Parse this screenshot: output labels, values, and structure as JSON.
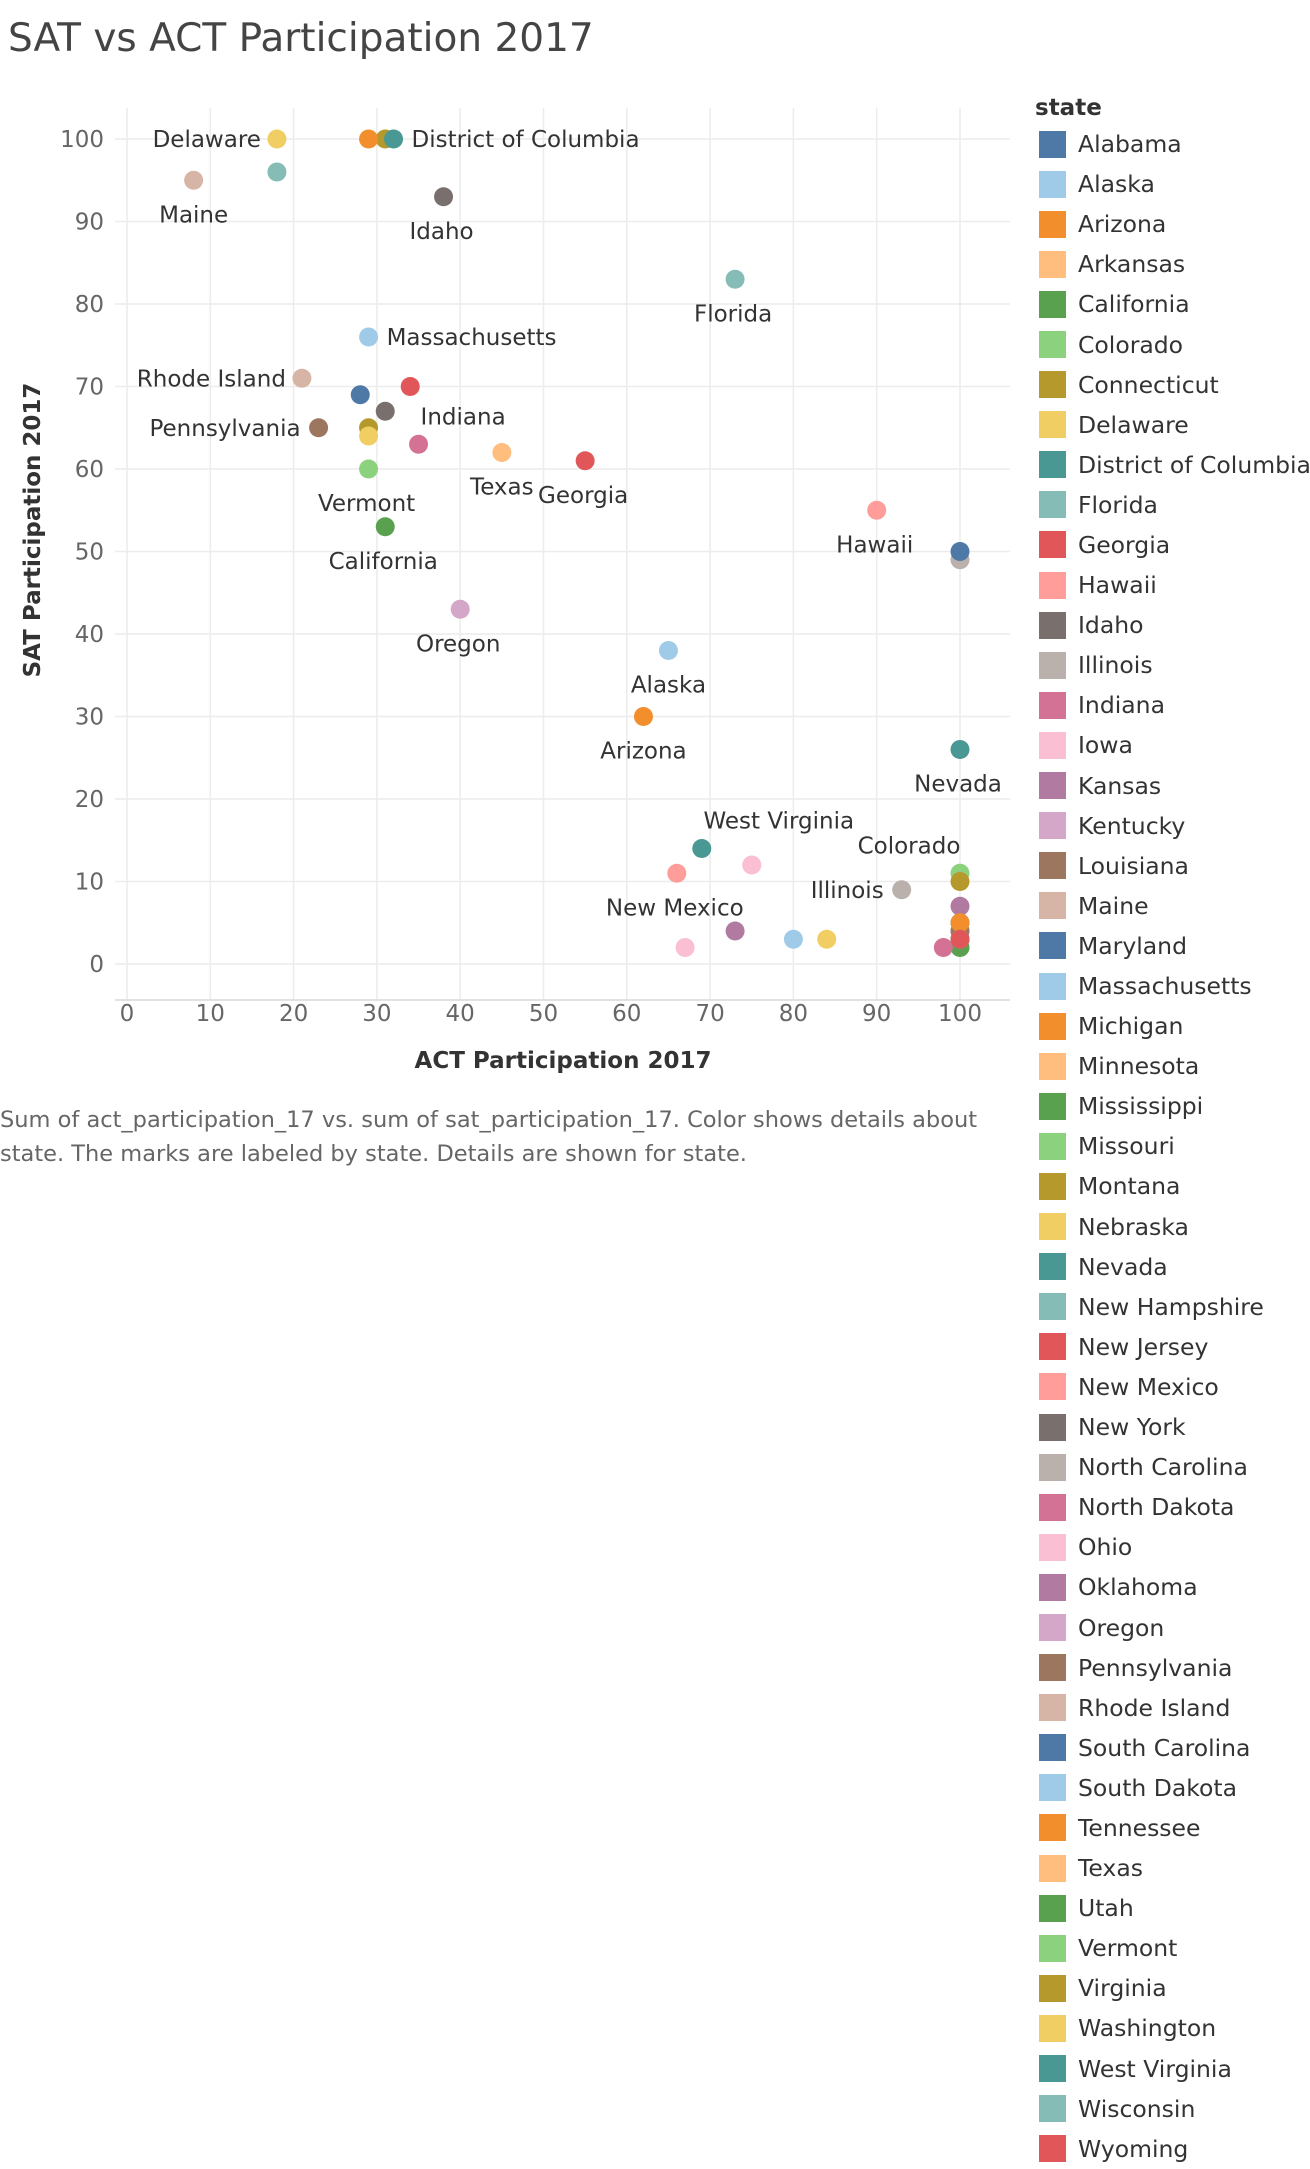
{
  "chart_data": {
    "type": "scatter",
    "title": "SAT vs ACT Participation 2017",
    "xlabel": "ACT Participation 2017",
    "ylabel": "SAT Participation 2017",
    "xlim": [
      -2,
      106
    ],
    "ylim": [
      -5,
      105
    ],
    "xticks": [
      "0",
      "10",
      "20",
      "30",
      "40",
      "50",
      "60",
      "70",
      "80",
      "90",
      "100"
    ],
    "yticks": [
      "0",
      "10",
      "20",
      "30",
      "40",
      "50",
      "60",
      "70",
      "80",
      "90",
      "100"
    ],
    "grid": true,
    "legend_title": "state",
    "legend_position": "right",
    "caption": "Sum of act_participation_17 vs. sum of sat_participation_17.  Color shows details about state.  The marks are labeled by state.  Details are shown for state.",
    "points": [
      {
        "state": "Alabama",
        "x": 100,
        "y": 5,
        "color": "#4e79a7"
      },
      {
        "state": "Alaska",
        "x": 65,
        "y": 38,
        "color": "#a0cbe8",
        "label": "Alaska"
      },
      {
        "state": "Arizona",
        "x": 62,
        "y": 30,
        "color": "#f28e2b",
        "label": "Arizona"
      },
      {
        "state": "Arkansas",
        "x": 100,
        "y": 3,
        "color": "#ffbe7d"
      },
      {
        "state": "California",
        "x": 31,
        "y": 53,
        "color": "#59a14f",
        "label": "California"
      },
      {
        "state": "Colorado",
        "x": 100,
        "y": 11,
        "color": "#8cd17d",
        "label": "Colorado"
      },
      {
        "state": "Connecticut",
        "x": 31,
        "y": 100,
        "color": "#b6992d"
      },
      {
        "state": "Delaware",
        "x": 18,
        "y": 100,
        "color": "#f1ce63",
        "label": "Delaware"
      },
      {
        "state": "District of Columbia",
        "x": 32,
        "y": 100,
        "color": "#499894",
        "label": "District of Columbia"
      },
      {
        "state": "Florida",
        "x": 73,
        "y": 83,
        "color": "#86bcb6",
        "label": "Florida"
      },
      {
        "state": "Georgia",
        "x": 55,
        "y": 61,
        "color": "#e15759",
        "label": "Georgia"
      },
      {
        "state": "Hawaii",
        "x": 90,
        "y": 55,
        "color": "#ff9d9a",
        "label": "Hawaii"
      },
      {
        "state": "Idaho",
        "x": 38,
        "y": 93,
        "color": "#79706e",
        "label": "Idaho"
      },
      {
        "state": "Illinois",
        "x": 93,
        "y": 9,
        "color": "#bab0ac",
        "label": "Illinois"
      },
      {
        "state": "Indiana",
        "x": 35,
        "y": 63,
        "color": "#d37295",
        "label": "Indiana"
      },
      {
        "state": "Iowa",
        "x": 67,
        "y": 2,
        "color": "#fabfd2"
      },
      {
        "state": "Kansas",
        "x": 73,
        "y": 4,
        "color": "#b07aa1"
      },
      {
        "state": "Kentucky",
        "x": 100,
        "y": 4,
        "color": "#d4a6c8"
      },
      {
        "state": "Louisiana",
        "x": 100,
        "y": 4,
        "color": "#9d7660"
      },
      {
        "state": "Maine",
        "x": 8,
        "y": 95,
        "color": "#d7b5a6",
        "label": "Maine"
      },
      {
        "state": "Maryland",
        "x": 28,
        "y": 69,
        "color": "#4e79a7"
      },
      {
        "state": "Massachusetts",
        "x": 29,
        "y": 76,
        "color": "#a0cbe8",
        "label": "Massachusetts"
      },
      {
        "state": "Michigan",
        "x": 29,
        "y": 100,
        "color": "#f28e2b"
      },
      {
        "state": "Minnesota",
        "x": 100,
        "y": 3,
        "color": "#ffbe7d"
      },
      {
        "state": "Mississippi",
        "x": 100,
        "y": 2,
        "color": "#59a14f"
      },
      {
        "state": "Missouri",
        "x": 100,
        "y": 3,
        "color": "#8cd17d"
      },
      {
        "state": "Montana",
        "x": 100,
        "y": 10,
        "color": "#b6992d"
      },
      {
        "state": "Nebraska",
        "x": 84,
        "y": 3,
        "color": "#f1ce63"
      },
      {
        "state": "Nevada",
        "x": 100,
        "y": 26,
        "color": "#499894",
        "label": "Nevada"
      },
      {
        "state": "New Hampshire",
        "x": 18,
        "y": 96,
        "color": "#86bcb6"
      },
      {
        "state": "New Jersey",
        "x": 34,
        "y": 70,
        "color": "#e15759"
      },
      {
        "state": "New Mexico",
        "x": 66,
        "y": 11,
        "color": "#ff9d9a",
        "label": "New Mexico"
      },
      {
        "state": "New York",
        "x": 31,
        "y": 67,
        "color": "#79706e"
      },
      {
        "state": "North Carolina",
        "x": 100,
        "y": 49,
        "color": "#bab0ac"
      },
      {
        "state": "North Dakota",
        "x": 98,
        "y": 2,
        "color": "#d37295"
      },
      {
        "state": "Ohio",
        "x": 75,
        "y": 12,
        "color": "#fabfd2"
      },
      {
        "state": "Oklahoma",
        "x": 100,
        "y": 7,
        "color": "#b07aa1"
      },
      {
        "state": "Oregon",
        "x": 40,
        "y": 43,
        "color": "#d4a6c8",
        "label": "Oregon"
      },
      {
        "state": "Pennsylvania",
        "x": 23,
        "y": 65,
        "color": "#9d7660",
        "label": "Pennsylvania"
      },
      {
        "state": "Rhode Island",
        "x": 21,
        "y": 71,
        "color": "#d7b5a6",
        "label": "Rhode Island"
      },
      {
        "state": "South Carolina",
        "x": 100,
        "y": 50,
        "color": "#4e79a7"
      },
      {
        "state": "South Dakota",
        "x": 80,
        "y": 3,
        "color": "#a0cbe8"
      },
      {
        "state": "Tennessee",
        "x": 100,
        "y": 5,
        "color": "#f28e2b"
      },
      {
        "state": "Texas",
        "x": 45,
        "y": 62,
        "color": "#ffbe7d",
        "label": "Texas"
      },
      {
        "state": "Utah",
        "x": 100,
        "y": 3,
        "color": "#59a14f"
      },
      {
        "state": "Vermont",
        "x": 29,
        "y": 60,
        "color": "#8cd17d",
        "label": "Vermont"
      },
      {
        "state": "Virginia",
        "x": 29,
        "y": 65,
        "color": "#b6992d"
      },
      {
        "state": "Washington",
        "x": 29,
        "y": 64,
        "color": "#f1ce63"
      },
      {
        "state": "West Virginia",
        "x": 69,
        "y": 14,
        "color": "#499894",
        "label": "West Virginia"
      },
      {
        "state": "Wisconsin",
        "x": 100,
        "y": 3,
        "color": "#86bcb6"
      },
      {
        "state": "Wyoming",
        "x": 100,
        "y": 3,
        "color": "#e15759"
      }
    ]
  }
}
